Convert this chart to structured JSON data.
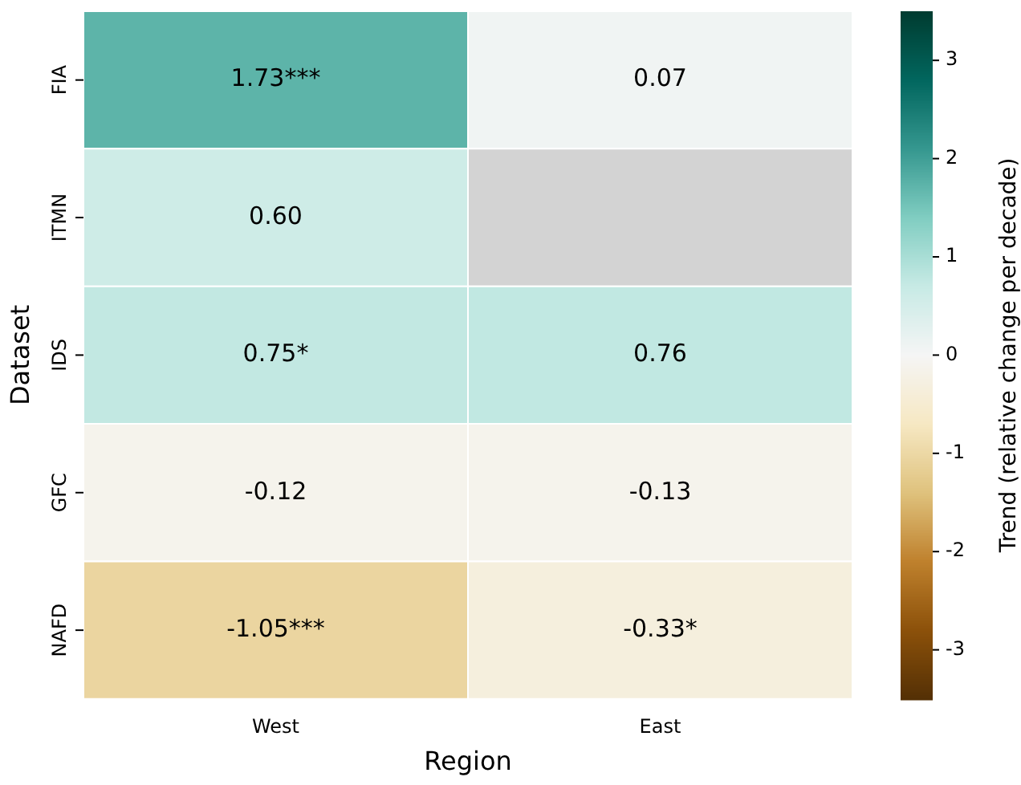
{
  "chart_data": {
    "type": "heatmap",
    "xlabel": "Region",
    "ylabel": "Dataset",
    "clabel": "Trend (relative change per decade)",
    "categories": [
      "West",
      "East"
    ],
    "y_categories": [
      "FIA",
      "ITMN",
      "IDS",
      "GFC",
      "NAFD"
    ],
    "cells": [
      [
        1.73,
        0.07
      ],
      [
        0.6,
        null
      ],
      [
        0.75,
        0.76
      ],
      [
        -0.12,
        -0.13
      ],
      [
        -1.05,
        -0.33
      ]
    ],
    "cell_labels": [
      [
        "1.73***",
        "0.07"
      ],
      [
        "0.60",
        null
      ],
      [
        "0.75*",
        "0.76"
      ],
      [
        "-0.12",
        "-0.13"
      ],
      [
        "-1.05***",
        "-0.33*"
      ]
    ],
    "clim": [
      -3.5,
      3.5
    ],
    "cticks": [
      -3,
      -2,
      -1,
      0,
      1,
      2,
      3
    ]
  }
}
